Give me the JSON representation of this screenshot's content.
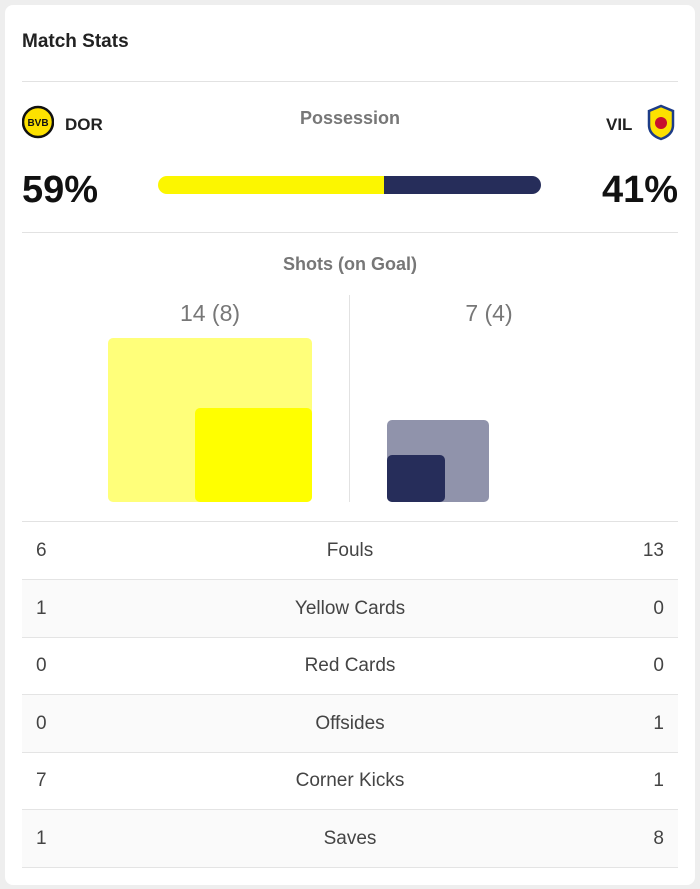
{
  "title": "Match Stats",
  "home": {
    "abbr": "DOR",
    "possession": {
      "value": 59,
      "label": "59%"
    }
  },
  "away": {
    "abbr": "VIL",
    "possession": {
      "value": 41,
      "label": "41%"
    }
  },
  "possession_title": "Possession",
  "shots": {
    "title": "Shots (on Goal)",
    "home": {
      "total": 14,
      "on_goal": 8,
      "label": "14 (8)"
    },
    "away": {
      "total": 7,
      "on_goal": 4,
      "label": "7 (4)"
    }
  },
  "stats": [
    {
      "label": "Fouls",
      "home": 6,
      "away": 13
    },
    {
      "label": "Yellow Cards",
      "home": 1,
      "away": 0
    },
    {
      "label": "Red Cards",
      "home": 0,
      "away": 0
    },
    {
      "label": "Offsides",
      "home": 0,
      "away": 1
    },
    {
      "label": "Corner Kicks",
      "home": 7,
      "away": 1
    },
    {
      "label": "Saves",
      "home": 1,
      "away": 8
    }
  ]
}
